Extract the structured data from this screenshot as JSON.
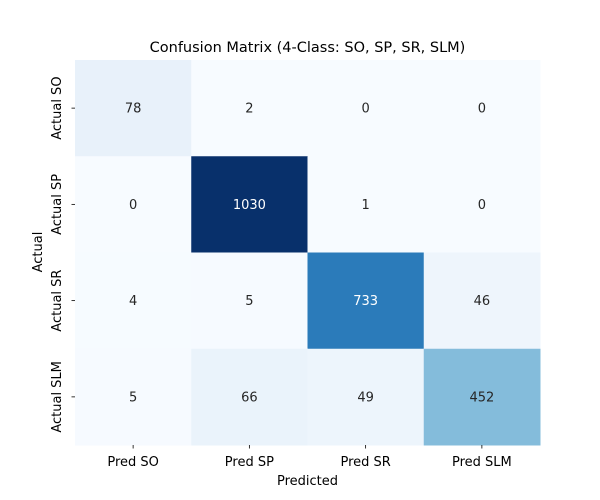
{
  "chart_data": {
    "type": "heatmap",
    "title": "Confusion Matrix (4-Class: SO, SP, SR, SLM)",
    "xlabel": "Predicted",
    "ylabel": "Actual",
    "x_categories": [
      "Pred SO",
      "Pred SP",
      "Pred SR",
      "Pred SLM"
    ],
    "y_categories": [
      "Actual SO",
      "Actual SP",
      "Actual SR",
      "Actual SLM"
    ],
    "values": [
      [
        78,
        2,
        0,
        0
      ],
      [
        0,
        1030,
        1,
        0
      ],
      [
        4,
        5,
        733,
        46
      ],
      [
        5,
        66,
        49,
        452
      ]
    ],
    "colormap": "Blues",
    "value_range": [
      0,
      1030
    ],
    "colorbar": false,
    "grid": false
  },
  "colors": {
    "text_dark": "#262626",
    "text_light": "#ffffff",
    "axis_text": "#000000"
  }
}
